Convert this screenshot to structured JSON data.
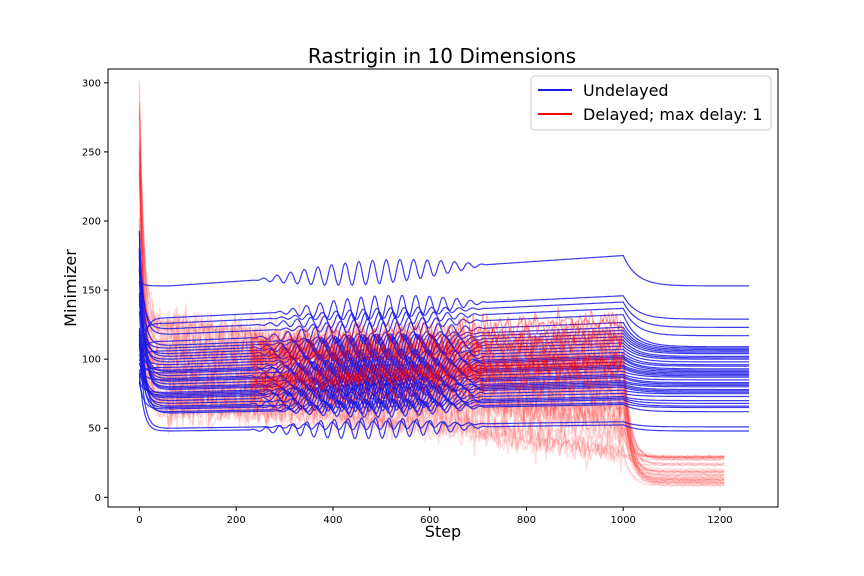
{
  "chart_data": {
    "type": "line",
    "title": "Rastrigin in 10 Dimensions",
    "xlabel": "Step",
    "ylabel": "Minimizer",
    "xlim": [
      -65,
      1320
    ],
    "ylim": [
      -7,
      310
    ],
    "xticks": [
      0,
      200,
      400,
      600,
      800,
      1000,
      1200
    ],
    "yticks": [
      0,
      50,
      100,
      150,
      200,
      250,
      300
    ],
    "legend_position": "upper-right",
    "grid": false,
    "colors": {
      "undelayed": "#1a1ae6",
      "delayed": "#ff0000"
    },
    "series": [
      {
        "name": "Undelayed",
        "run_count": 40,
        "x_range": [
          0,
          1260
        ],
        "initial_value_range": [
          80,
          200
        ],
        "plateau_values_at_100": [
          48,
          50,
          61,
          62,
          64,
          65,
          66,
          68,
          70,
          72,
          73,
          74,
          75,
          76,
          78,
          79,
          80,
          82,
          84,
          85,
          86,
          88,
          90,
          91,
          92,
          94,
          96,
          98,
          100,
          102,
          104,
          106,
          108,
          110,
          113,
          118,
          122,
          126,
          130,
          153
        ],
        "values_at_1000_range": [
          48,
          175
        ],
        "final_values_at_1260": [
          48,
          51,
          62,
          65,
          66,
          68,
          70,
          73,
          75,
          76,
          77,
          78,
          80,
          81,
          82,
          83,
          85,
          87,
          88,
          89,
          90,
          91,
          92,
          93,
          95,
          96,
          98,
          100,
          101,
          102,
          104,
          105,
          106,
          107,
          108,
          109,
          117,
          123,
          129,
          153
        ]
      },
      {
        "name": "Delayed; max delay: 1",
        "run_count": 40,
        "x_range": [
          0,
          1210
        ],
        "initial_value_range": [
          150,
          295
        ],
        "noisy_band_100_to_1000": [
          40,
          205
        ],
        "values_at_1000_range": [
          30,
          150
        ],
        "final_values_at_1210_range": [
          8,
          30
        ]
      }
    ]
  }
}
